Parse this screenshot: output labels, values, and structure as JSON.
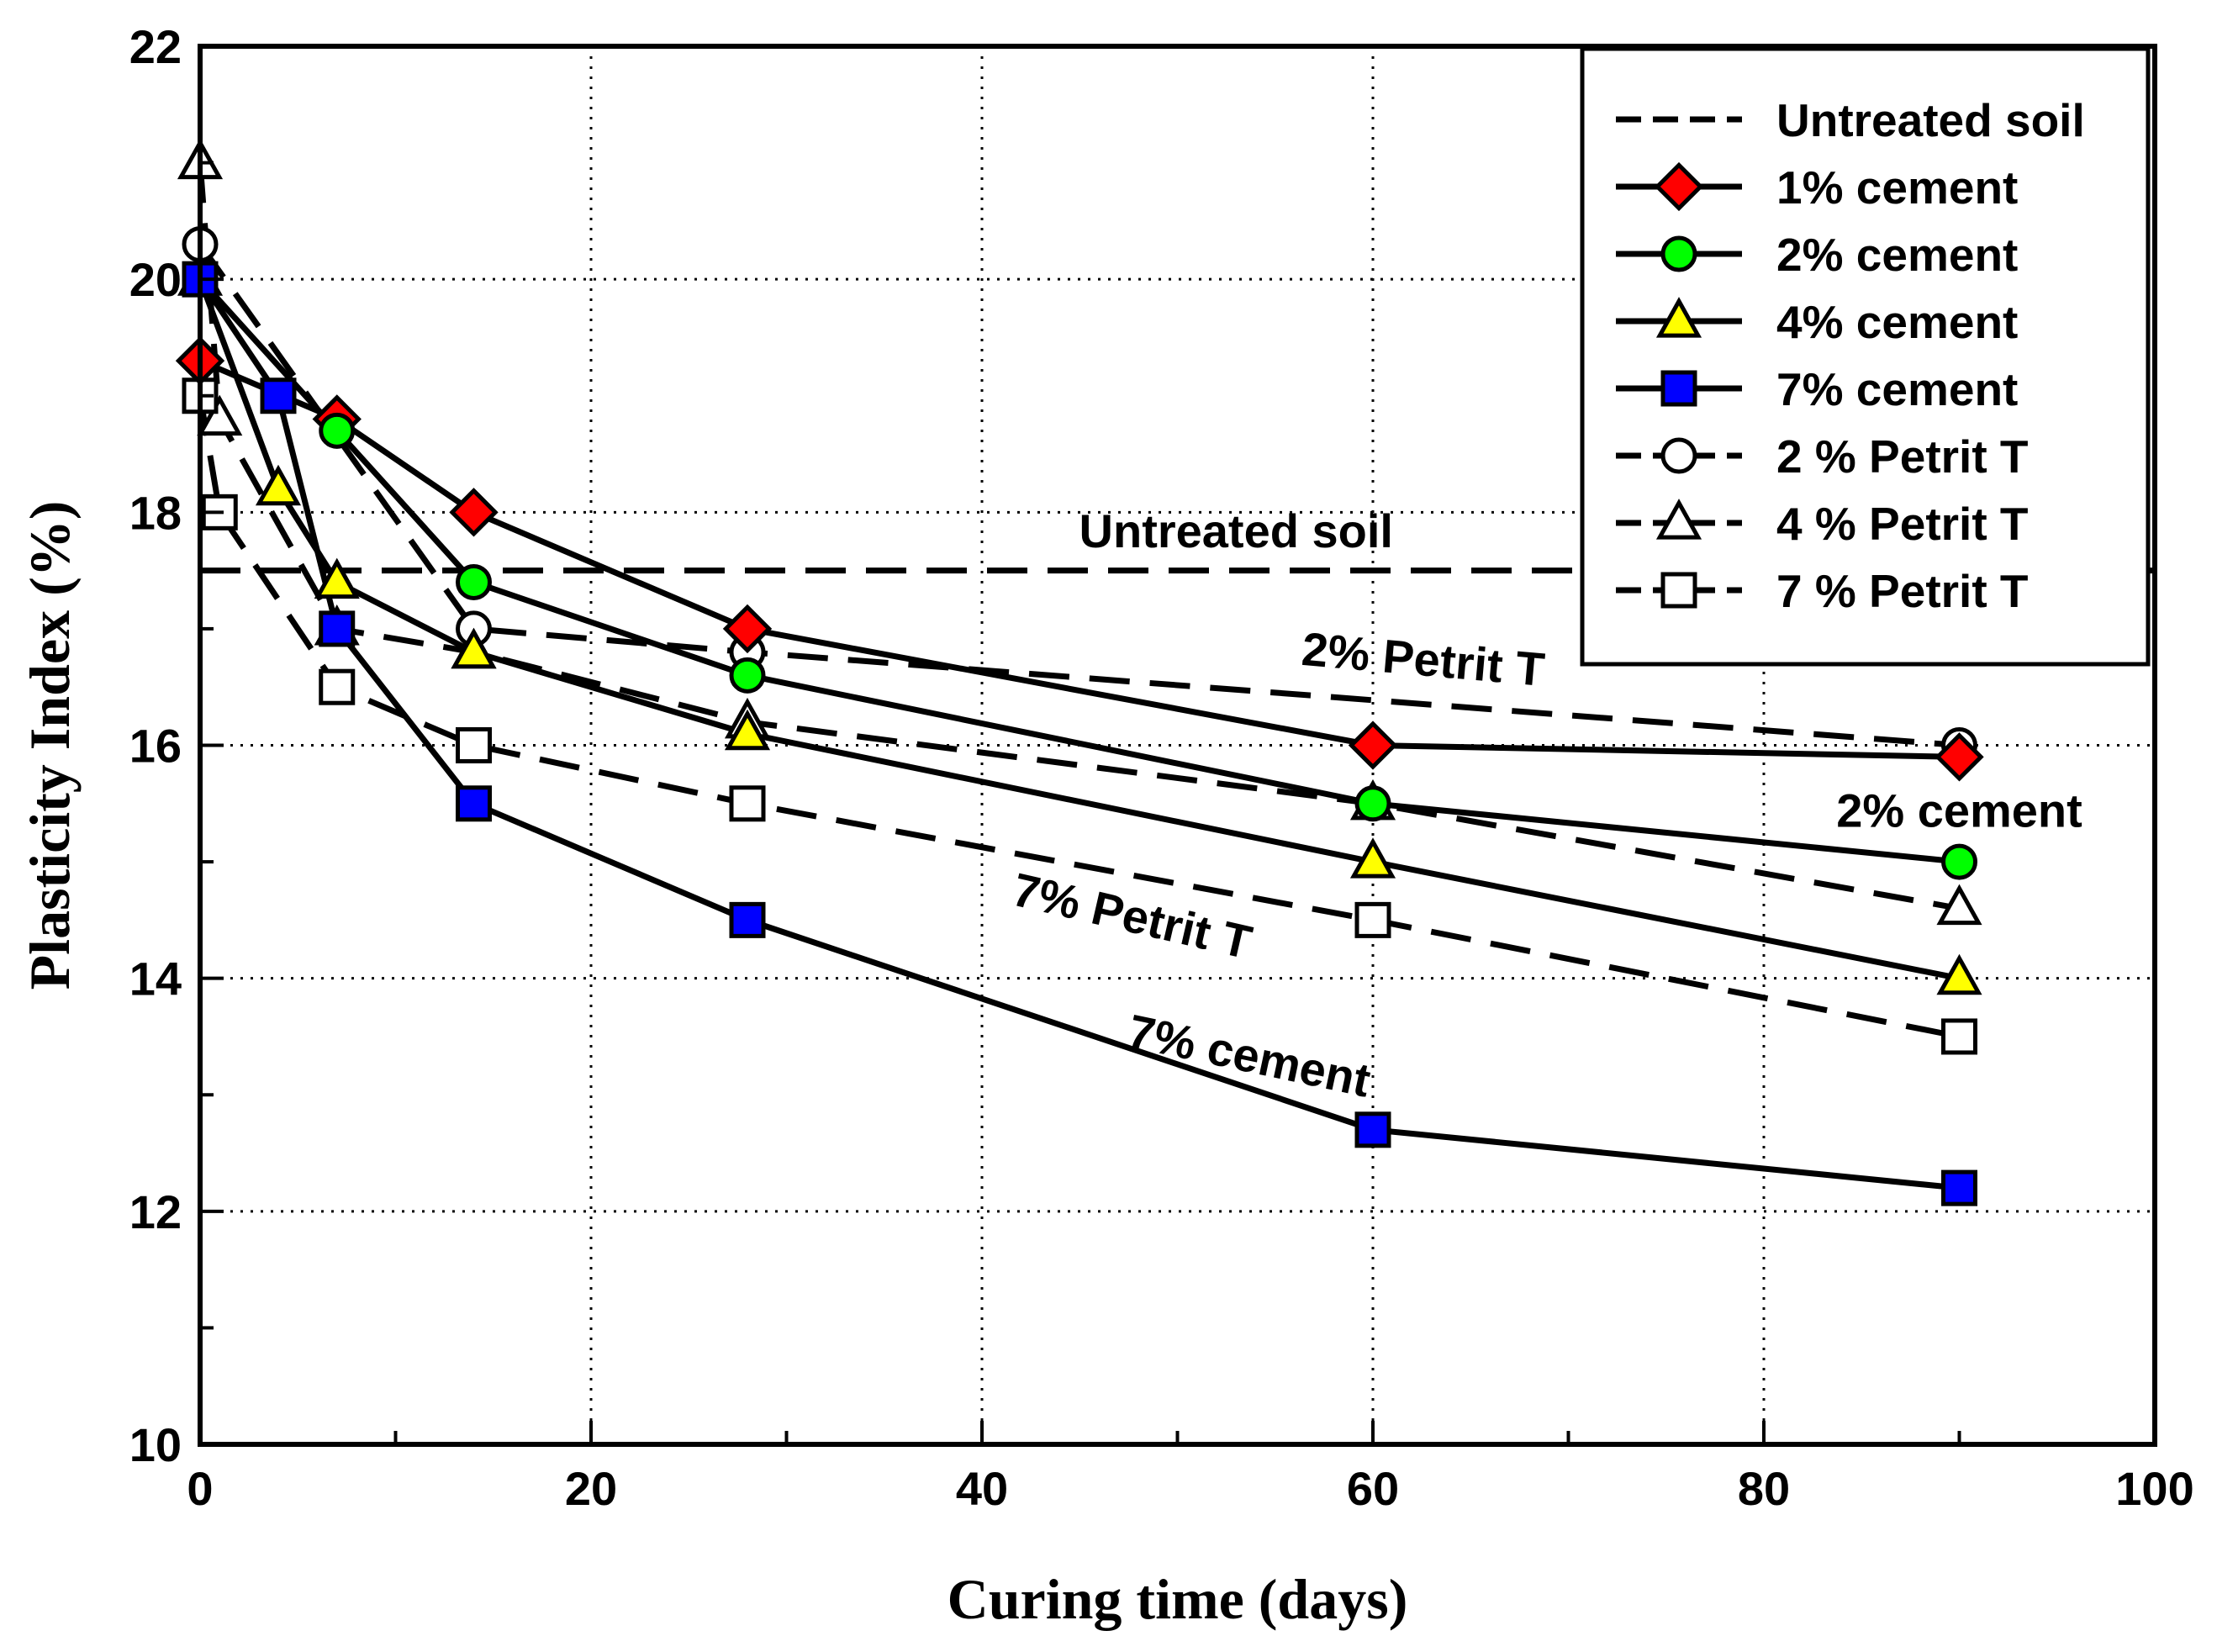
{
  "chart_data": {
    "type": "line",
    "title": "",
    "xlabel": "Curing time (days)",
    "ylabel": "Plasticity Index  (%)",
    "xlim": [
      0,
      100
    ],
    "ylim": [
      10,
      22
    ],
    "xticks": [
      0,
      20,
      40,
      60,
      80,
      100
    ],
    "yticks": [
      10,
      12,
      14,
      16,
      18,
      20,
      22
    ],
    "grid": "dotted",
    "legend_position": "top-right",
    "series": [
      {
        "name": "Untreated soil",
        "style": "dashed",
        "marker": "none",
        "fill": "none",
        "x": [
          0,
          100
        ],
        "values": [
          17.5,
          17.5
        ]
      },
      {
        "name": "1% cement",
        "style": "solid",
        "marker": "diamond",
        "fill": "#ff0000",
        "x": [
          0,
          7,
          14,
          28,
          60,
          90
        ],
        "values": [
          19.3,
          18.8,
          18.0,
          17.0,
          16.0,
          15.9
        ]
      },
      {
        "name": "2% cement",
        "style": "solid",
        "marker": "circle",
        "fill": "#00ff00",
        "x": [
          0,
          7,
          14,
          28,
          60,
          90
        ],
        "values": [
          20.0,
          18.7,
          17.4,
          16.6,
          15.5,
          15.0
        ]
      },
      {
        "name": "4% cement",
        "style": "solid",
        "marker": "triangle",
        "fill": "#ffff00",
        "x": [
          0,
          4,
          7,
          14,
          28,
          60,
          90
        ],
        "values": [
          20.0,
          18.2,
          17.4,
          16.8,
          16.1,
          15.0,
          14.0
        ]
      },
      {
        "name": "7% cement",
        "style": "solid",
        "marker": "square",
        "fill": "#0000ff",
        "x": [
          0,
          4,
          7,
          14,
          28,
          60,
          90
        ],
        "values": [
          20.0,
          19.0,
          17.0,
          15.5,
          14.5,
          12.7,
          12.2
        ]
      },
      {
        "name": "2 % Petrit T",
        "style": "dashed",
        "marker": "circle",
        "fill": "#ffffff",
        "x": [
          0,
          14,
          28,
          90
        ],
        "values": [
          20.3,
          17.0,
          16.8,
          16.0
        ]
      },
      {
        "name": "4 % Petrit T",
        "style": "dashed",
        "marker": "triangle",
        "fill": "#ffffff",
        "x": [
          0,
          1,
          7,
          14,
          28,
          60,
          90
        ],
        "values": [
          21.0,
          18.8,
          17.0,
          16.8,
          16.2,
          15.5,
          14.6
        ]
      },
      {
        "name": "7 % Petrit T",
        "style": "dashed",
        "marker": "square",
        "fill": "#ffffff",
        "x": [
          0,
          1,
          7,
          14,
          28,
          60,
          90
        ],
        "values": [
          19.0,
          18.0,
          16.5,
          16.0,
          15.5,
          14.5,
          13.5
        ]
      }
    ],
    "annotations": [
      {
        "text": "Untreated soil",
        "x": 53,
        "y": 17.7,
        "angle": 0
      },
      {
        "text": "2% Petrit T",
        "x": 62.5,
        "y": 16.6,
        "angle": 5
      },
      {
        "text": "2% cement",
        "x": 90,
        "y": 15.3,
        "angle": 0
      },
      {
        "text": "7% Petrit T",
        "x": 47.5,
        "y": 14.4,
        "angle": 13
      },
      {
        "text": "7% cement",
        "x": 53.5,
        "y": 13.2,
        "angle": 12
      }
    ]
  }
}
